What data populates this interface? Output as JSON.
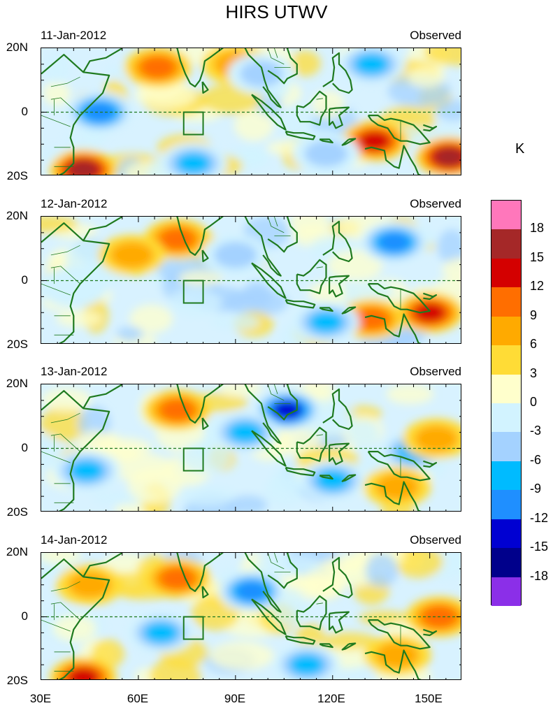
{
  "title": "HIRS UTWV",
  "chart_data": {
    "type": "heatmap",
    "variable": "HIRS UTWV",
    "unit": "K",
    "x_ticks": [
      "30E",
      "60E",
      "90E",
      "120E",
      "150E"
    ],
    "x_tick_values": [
      30,
      60,
      90,
      120,
      150
    ],
    "xlim": [
      30,
      160
    ],
    "y_ticks": [
      "20N",
      "0",
      "20S"
    ],
    "y_tick_values": [
      20,
      0,
      -20
    ],
    "ylim": [
      -20,
      20
    ],
    "box_region": {
      "lon": [
        74,
        80
      ],
      "lat": [
        -7,
        0
      ]
    },
    "equator_line": "dashed",
    "colorbar": {
      "levels": [
        "18",
        "15",
        "12",
        "9",
        "6",
        "3",
        "0",
        "-3",
        "-6",
        "-9",
        "-12",
        "-15",
        "-18"
      ],
      "colors": [
        "#ff77bb",
        "#a52828",
        "#d40000",
        "#ff6e00",
        "#ffaa00",
        "#ffdc36",
        "#ffffcc",
        "#d2f3ff",
        "#a4d2ff",
        "#00bbff",
        "#1f8fff",
        "#0000d2",
        "#00008b",
        "#8b2fe8"
      ]
    },
    "panels": [
      {
        "date": "11-Jan-2012",
        "label": "Observed",
        "features": [
          {
            "lon": 48,
            "lat": 0,
            "value": -12
          },
          {
            "lon": 66,
            "lat": 14,
            "value": 9
          },
          {
            "lon": 90,
            "lat": 15,
            "value": 6
          },
          {
            "lon": 98,
            "lat": 12,
            "value": -6
          },
          {
            "lon": 132,
            "lat": 15,
            "value": -9
          },
          {
            "lon": 133,
            "lat": -9,
            "value": 12
          },
          {
            "lon": 156,
            "lat": -14,
            "value": 15
          },
          {
            "lon": 43,
            "lat": -18,
            "value": 15
          },
          {
            "lon": 77,
            "lat": -16,
            "value": -9
          },
          {
            "lon": 118,
            "lat": -13,
            "value": -6
          }
        ]
      },
      {
        "date": "12-Jan-2012",
        "label": "Observed",
        "features": [
          {
            "lon": 72,
            "lat": 13,
            "value": 9
          },
          {
            "lon": 58,
            "lat": 8,
            "value": 6
          },
          {
            "lon": 139,
            "lat": 12,
            "value": -12
          },
          {
            "lon": 150,
            "lat": -10,
            "value": 12
          },
          {
            "lon": 132,
            "lat": -12,
            "value": 9
          },
          {
            "lon": 118,
            "lat": -13,
            "value": -9
          },
          {
            "lon": 40,
            "lat": -2,
            "value": -3
          },
          {
            "lon": 90,
            "lat": 8,
            "value": -6
          }
        ]
      },
      {
        "date": "13-Jan-2012",
        "label": "Observed",
        "features": [
          {
            "lon": 72,
            "lat": 12,
            "value": 9
          },
          {
            "lon": 106,
            "lat": 12,
            "value": -15
          },
          {
            "lon": 93,
            "lat": 5,
            "value": -9
          },
          {
            "lon": 145,
            "lat": -1,
            "value": -9
          },
          {
            "lon": 120,
            "lat": -10,
            "value": -9
          },
          {
            "lon": 44,
            "lat": -7,
            "value": -9
          },
          {
            "lon": 152,
            "lat": 3,
            "value": 6
          },
          {
            "lon": 140,
            "lat": -12,
            "value": 6
          }
        ]
      },
      {
        "date": "14-Jan-2012",
        "label": "Observed",
        "features": [
          {
            "lon": 72,
            "lat": 12,
            "value": 9
          },
          {
            "lon": 95,
            "lat": 8,
            "value": -12
          },
          {
            "lon": 67,
            "lat": -5,
            "value": -9
          },
          {
            "lon": 112,
            "lat": -15,
            "value": -9
          },
          {
            "lon": 153,
            "lat": 0,
            "value": 9
          },
          {
            "lon": 43,
            "lat": -19,
            "value": 12
          },
          {
            "lon": 45,
            "lat": 10,
            "value": 6
          },
          {
            "lon": 140,
            "lat": -12,
            "value": 6
          }
        ]
      }
    ]
  }
}
